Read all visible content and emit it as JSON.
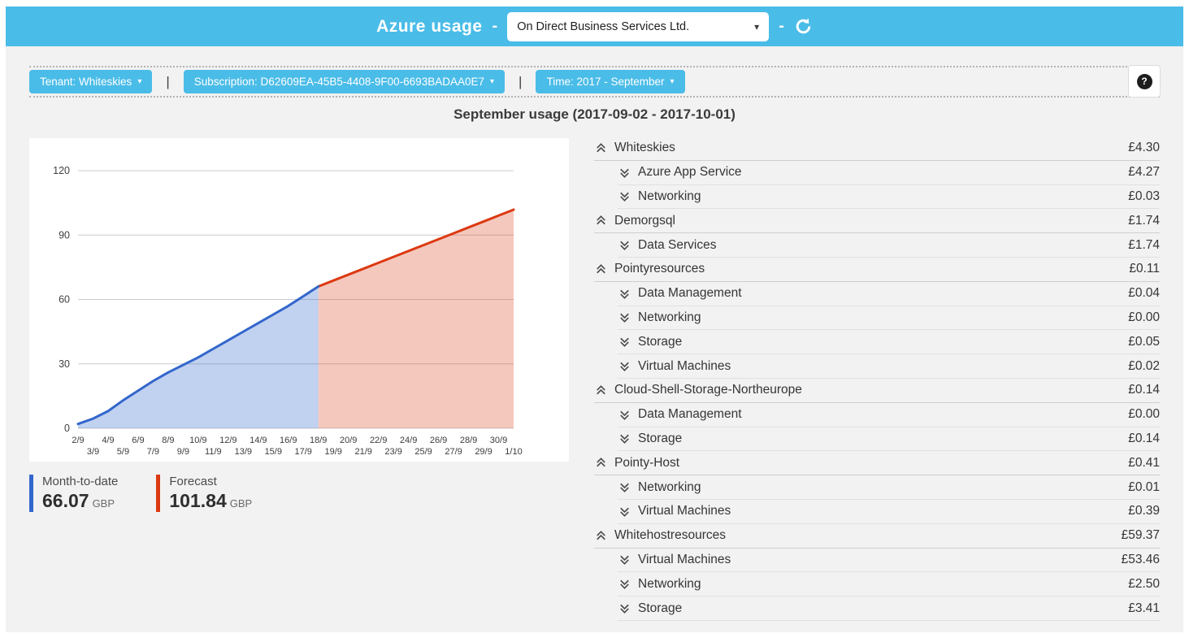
{
  "header": {
    "title": "Azure usage",
    "separator": "-",
    "company_selector": {
      "value": "On Direct Business Services Ltd."
    }
  },
  "icons": {
    "caret_down": "▾"
  },
  "filters": {
    "tenant_label": "Tenant: Whiteskies",
    "subscription_label": "Subscription: D62609EA-45B5-4408-9F00-6693BADAA0E7",
    "time_label": "Time: 2017 - September",
    "separator": "|",
    "help_label": "?"
  },
  "section": {
    "title": "September usage (2017-09-02 - 2017-10-01)"
  },
  "chart_data": {
    "type": "area",
    "title": "September usage (2017-09-02 - 2017-10-01)",
    "categories": [
      "2/9",
      "3/9",
      "4/9",
      "5/9",
      "6/9",
      "7/9",
      "8/9",
      "9/9",
      "10/9",
      "11/9",
      "12/9",
      "13/9",
      "14/9",
      "15/9",
      "16/9",
      "17/9",
      "18/9",
      "19/9",
      "20/9",
      "21/9",
      "22/9",
      "23/9",
      "24/9",
      "25/9",
      "26/9",
      "27/9",
      "28/9",
      "29/9",
      "30/9",
      "1/10"
    ],
    "ylim": [
      0,
      120
    ],
    "yticks": [
      0,
      30,
      60,
      90,
      120
    ],
    "grid": true,
    "legend_position": "below",
    "xlabel": "",
    "ylabel": "",
    "series": [
      {
        "name": "Month-to-date",
        "color": "#3366cc",
        "fill": "rgba(51,102,204,0.30)",
        "start_index": 0,
        "values": [
          2,
          4.5,
          8,
          13,
          17.5,
          22,
          26,
          29.5,
          33,
          37,
          41,
          45,
          49,
          53,
          57,
          61.5,
          66.07
        ]
      },
      {
        "name": "Forecast",
        "color": "#dc3912",
        "fill": "rgba(220,57,18,0.28)",
        "start_index": 16,
        "values": [
          66.07,
          68.82,
          71.57,
          74.32,
          77.07,
          79.82,
          82.57,
          85.32,
          88.07,
          90.82,
          93.57,
          96.32,
          99.09,
          101.84
        ]
      }
    ]
  },
  "legend": {
    "items": [
      {
        "label": "Month-to-date",
        "value": "66.07",
        "currency": "GBP",
        "color": "#3366cc"
      },
      {
        "label": "Forecast",
        "value": "101.84",
        "currency": "GBP",
        "color": "#dc3912"
      }
    ]
  },
  "usage_list": {
    "groups": [
      {
        "name": "Whiteskies",
        "value": "£4.30",
        "items": [
          {
            "name": "Azure App Service",
            "value": "£4.27"
          },
          {
            "name": "Networking",
            "value": "£0.03"
          }
        ]
      },
      {
        "name": "Demorgsql",
        "value": "£1.74",
        "items": [
          {
            "name": "Data Services",
            "value": "£1.74"
          }
        ]
      },
      {
        "name": "Pointyresources",
        "value": "£0.11",
        "items": [
          {
            "name": "Data Management",
            "value": "£0.04"
          },
          {
            "name": "Networking",
            "value": "£0.00"
          },
          {
            "name": "Storage",
            "value": "£0.05"
          },
          {
            "name": "Virtual Machines",
            "value": "£0.02"
          }
        ]
      },
      {
        "name": "Cloud-Shell-Storage-Northeurope",
        "value": "£0.14",
        "items": [
          {
            "name": "Data Management",
            "value": "£0.00"
          },
          {
            "name": "Storage",
            "value": "£0.14"
          }
        ]
      },
      {
        "name": "Pointy-Host",
        "value": "£0.41",
        "items": [
          {
            "name": "Networking",
            "value": "£0.01"
          },
          {
            "name": "Virtual Machines",
            "value": "£0.39"
          }
        ]
      },
      {
        "name": "Whitehostresources",
        "value": "£59.37",
        "items": [
          {
            "name": "Virtual Machines",
            "value": "£53.46"
          },
          {
            "name": "Networking",
            "value": "£2.50"
          },
          {
            "name": "Storage",
            "value": "£3.41"
          }
        ]
      }
    ]
  }
}
